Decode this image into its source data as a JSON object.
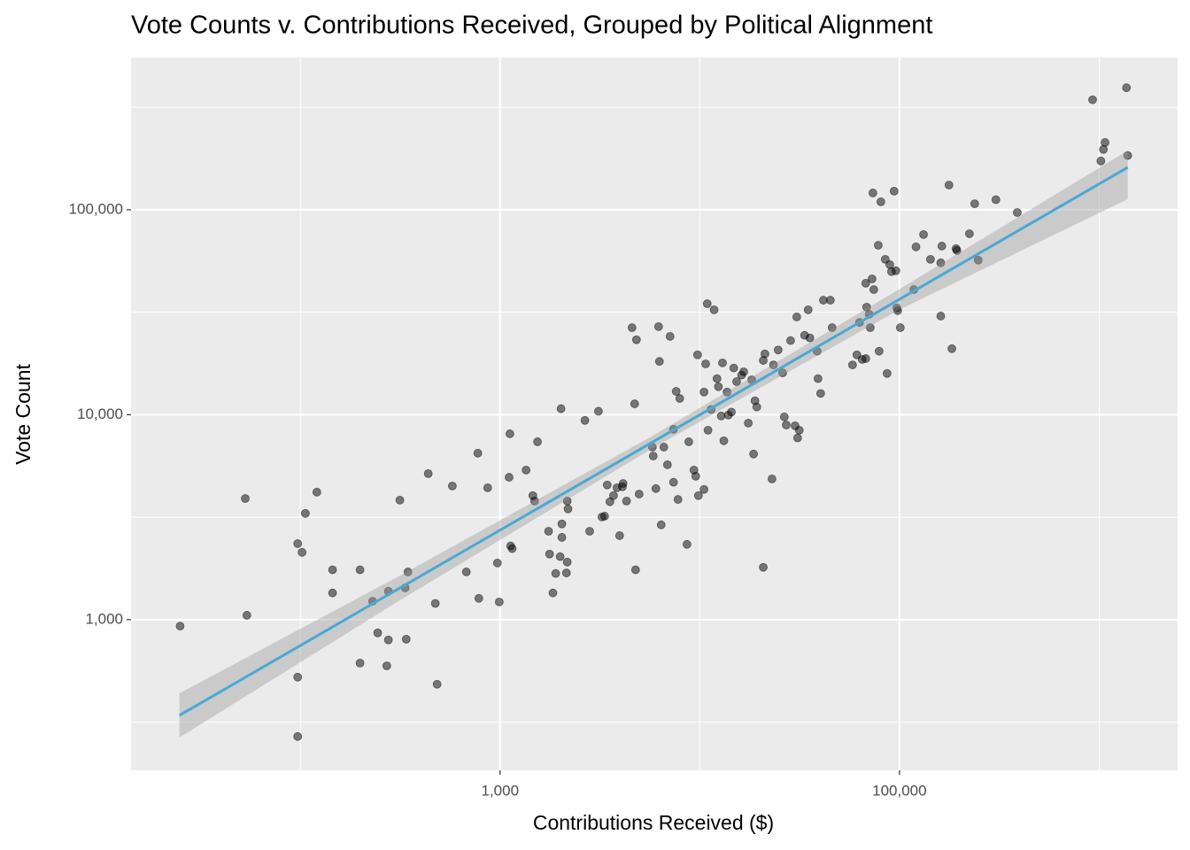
{
  "chart_data": {
    "type": "scatter",
    "title": "Vote Counts v. Contributions Received, Grouped by Political Alignment",
    "x_label": "Contributions Received ($)",
    "y_label": "Vote Count",
    "xscale": "log",
    "yscale": "log",
    "grid": true,
    "xlim": [
      14.2,
      2470000
    ],
    "ylim": [
      184,
      553000
    ],
    "xticks": [
      {
        "value": 1000,
        "label": "1,000"
      },
      {
        "value": 100000,
        "label": "100,000"
      }
    ],
    "yticks": [
      {
        "value": 1000,
        "label": "1,000"
      },
      {
        "value": 10000,
        "label": "10,000"
      },
      {
        "value": 100000,
        "label": "100,000"
      }
    ],
    "x_minor_breaks": [
      100,
      10000,
      1000000
    ],
    "y_minor_breaks": [
      316.228,
      3162.28,
      31622.8,
      316228
    ],
    "color": "#000000",
    "x": [
      25,
      53,
      54,
      97,
      102,
      106,
      97,
      97,
      121,
      145,
      145,
      199,
      199,
      230,
      244,
      271,
      276,
      276,
      315,
      335,
      346,
      339,
      437,
      474,
      484,
      577,
      678,
      774,
      783,
      867,
      970,
      991,
      1110,
      1120,
      1130,
      1150,
      1350,
      1460,
      1490,
      1540,
      1750,
      1770,
      1840,
      1900,
      2000,
      2020,
      2040,
      2040,
      2150,
      2170,
      2170,
      2190,
      2660,
      2810,
      3110,
      3240,
      3340,
      3440,
      3550,
      3700,
      3850,
      3970,
      4100,
      4580,
      4720,
      4770,
      4820,
      4970,
      4130,
      4300,
      5790,
      5850,
      6030,
      6220,
      6280,
      6410,
      6610,
      6890,
      7100,
      7390,
      7390,
      7620,
      7780,
      7940,
      8630,
      8810,
      9350,
      9550,
      9750,
      9850,
      10500,
      10500,
      10700,
      10900,
      11000,
      11800,
      11400,
      12200,
      12400,
      12800,
      13000,
      13200,
      13700,
      13900,
      14400,
      14800,
      15300,
      16200,
      16600,
      17500,
      18200,
      18600,
      18900,
      19300,
      20800,
      21200,
      20800,
      23000,
      23400,
      24700,
      26000,
      26500,
      27100,
      28500,
      30000,
      30600,
      30900,
      31500,
      33500,
      34900,
      35600,
      38700,
      39100,
      40300,
      41600,
      45100,
      46000,
      58200,
      61200,
      63100,
      65100,
      67800,
      68500,
      71400,
      70600,
      67800,
      72900,
      73600,
      74400,
      78300,
      80700,
      79100,
      84900,
      86700,
      89400,
      91200,
      94000,
      96000,
      97000,
      98000,
      101000,
      118000,
      121000,
      132000,
      143000,
      161000,
      161000,
      163000,
      177000,
      183000,
      192000,
      194000,
      224000,
      238000,
      248000,
      304000,
      389000,
      927000,
      1020000,
      1050000,
      1070000,
      1370000,
      1390000
    ],
    "values": [
      930,
      3900,
      1050,
      2350,
      2130,
      3300,
      524,
      269,
      4190,
      1750,
      1350,
      1750,
      614,
      1230,
      862,
      595,
      796,
      1375,
      3830,
      1430,
      1710,
      803,
      5160,
      1200,
      484,
      4490,
      1710,
      6490,
      1270,
      4400,
      1890,
      1220,
      4950,
      8070,
      2290,
      2220,
      5370,
      4030,
      3790,
      7380,
      2700,
      2090,
      1350,
      1680,
      2030,
      10700,
      2930,
      2520,
      1690,
      1910,
      3790,
      3470,
      9380,
      2700,
      10400,
      3170,
      3200,
      4540,
      3760,
      4030,
      4400,
      2570,
      4450,
      26600,
      11300,
      1750,
      23200,
      4100,
      4620,
      3790,
      6950,
      6290,
      4360,
      26900,
      18200,
      2900,
      6950,
      5700,
      24100,
      4680,
      8490,
      13000,
      3860,
      12000,
      2330,
      7380,
      5370,
      5010,
      19600,
      4030,
      4320,
      12900,
      17700,
      34800,
      8400,
      32500,
      10600,
      15000,
      13700,
      9860,
      17900,
      7460,
      12900,
      9960,
      10300,
      16900,
      14500,
      15600,
      16200,
      9100,
      14800,
      6430,
      11700,
      10900,
      18400,
      19800,
      1800,
      4860,
      17500,
      20700,
      16000,
      9760,
      8910,
      23000,
      8830,
      30000,
      7700,
      8400,
      24400,
      32500,
      23700,
      20400,
      15000,
      12700,
      36200,
      36200,
      26600,
      17500,
      19600,
      28200,
      18600,
      18800,
      33500,
      26600,
      30900,
      43800,
      46000,
      120800,
      40800,
      67100,
      109400,
      20400,
      57300,
      15900,
      54000,
      49900,
      123300,
      50400,
      33200,
      32200,
      26600,
      40800,
      65900,
      75700,
      57300,
      55100,
      30300,
      66500,
      132000,
      21000,
      64600,
      63300,
      76400,
      107000,
      56800,
      112000,
      97000,
      344000,
      173000,
      197000,
      213000,
      394000,
      184000
    ],
    "trend": {
      "color": "#4aa8d4",
      "band_color": "#999999",
      "x": [
        24.8,
        316,
        5890,
        100000,
        1390000
      ],
      "y": [
        341,
        1429,
        7413,
        36560,
        161000
      ],
      "lower": [
        266,
        1245,
        6918,
        32580,
        112700
      ],
      "upper": [
        437,
        1641,
        7943,
        41020,
        194500
      ]
    }
  }
}
